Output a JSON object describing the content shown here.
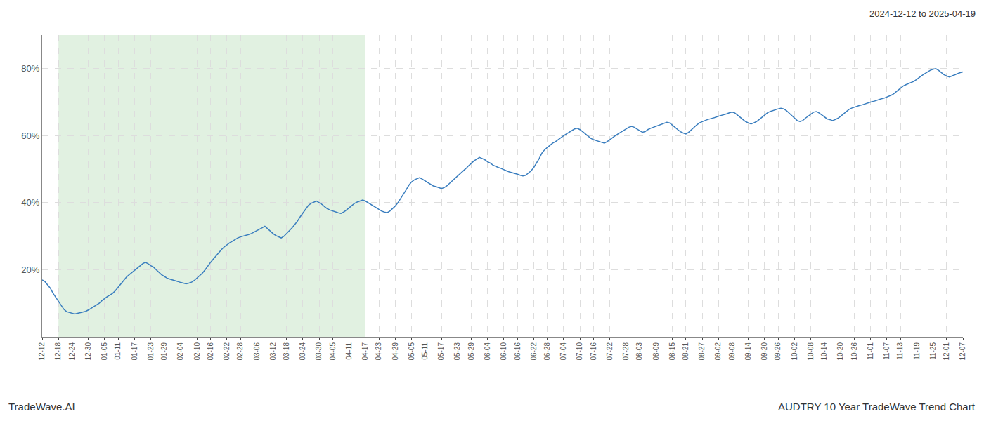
{
  "chart_data": {
    "type": "line",
    "title": "AUDTRY 10 Year TradeWave Trend Chart",
    "subtitle": "2024-12-12 to 2025-04-19",
    "annotations": [
      "TradeWave.AI"
    ],
    "color": "#3a7ebf",
    "grid": true,
    "ylim": [
      0.0,
      0.9
    ],
    "yticks": [
      {
        "value": 0.2,
        "label": "20%"
      },
      {
        "value": 0.4,
        "label": "40%"
      },
      {
        "value": 0.6,
        "label": "60%"
      },
      {
        "value": 0.8,
        "label": "80%"
      }
    ],
    "shaded_region": {
      "start": "12-18",
      "end": "04-17",
      "color": "#c8e6c9"
    },
    "categories": [
      "12-12",
      null,
      null,
      null,
      null,
      null,
      "12-18",
      null,
      null,
      null,
      null,
      "12-24",
      null,
      null,
      null,
      null,
      null,
      "12-30",
      null,
      null,
      null,
      null,
      null,
      "01-05",
      null,
      null,
      null,
      null,
      "01-11",
      null,
      null,
      null,
      null,
      null,
      "01-17",
      null,
      null,
      null,
      null,
      null,
      "01-23",
      null,
      null,
      null,
      null,
      "01-29",
      null,
      null,
      null,
      null,
      null,
      "02-04",
      null,
      null,
      null,
      null,
      null,
      "02-10",
      null,
      null,
      null,
      null,
      "02-16",
      null,
      null,
      null,
      null,
      null,
      "02-22",
      null,
      null,
      null,
      null,
      "02-28",
      null,
      null,
      null,
      null,
      null,
      "03-06",
      null,
      null,
      null,
      null,
      null,
      "03-12",
      null,
      null,
      null,
      null,
      "03-18",
      null,
      null,
      null,
      null,
      null,
      "03-24",
      null,
      null,
      null,
      null,
      null,
      "03-30",
      null,
      null,
      null,
      null,
      "04-05",
      null,
      null,
      null,
      null,
      null,
      "04-11",
      null,
      null,
      null,
      null,
      null,
      "04-17",
      null,
      null,
      null,
      null,
      "04-23",
      null,
      null,
      null,
      null,
      null,
      "04-29",
      null,
      null,
      null,
      null,
      null,
      "05-05",
      null,
      null,
      null,
      null,
      "05-11",
      null,
      null,
      null,
      null,
      null,
      "05-17",
      null,
      null,
      null,
      null,
      null,
      "05-23",
      null,
      null,
      null,
      null,
      "05-29",
      null,
      null,
      null,
      null,
      null,
      "06-04",
      null,
      null,
      null,
      null,
      null,
      "06-10",
      null,
      null,
      null,
      null,
      "06-16",
      null,
      null,
      null,
      null,
      null,
      "06-22",
      null,
      null,
      null,
      null,
      "06-28",
      null,
      null,
      null,
      null,
      null,
      "07-04",
      null,
      null,
      null,
      null,
      null,
      "07-10",
      null,
      null,
      null,
      null,
      "07-16",
      null,
      null,
      null,
      null,
      null,
      "07-22",
      null,
      null,
      null,
      null,
      null,
      "07-28",
      null,
      null,
      null,
      null,
      "08-03",
      null,
      null,
      null,
      null,
      null,
      "08-09",
      null,
      null,
      null,
      null,
      null,
      "08-15",
      null,
      null,
      null,
      null,
      "08-21",
      null,
      null,
      null,
      null,
      null,
      "08-27",
      null,
      null,
      null,
      null,
      null,
      "09-02",
      null,
      null,
      null,
      null,
      "09-08",
      null,
      null,
      null,
      null,
      null,
      "09-14",
      null,
      null,
      null,
      null,
      null,
      "09-20",
      null,
      null,
      null,
      null,
      "09-26",
      null,
      null,
      null,
      null,
      null,
      "10-02",
      null,
      null,
      null,
      null,
      null,
      "10-08",
      null,
      null,
      null,
      null,
      "10-14",
      null,
      null,
      null,
      null,
      null,
      "10-20",
      null,
      null,
      null,
      null,
      "10-26",
      null,
      null,
      null,
      null,
      null,
      "11-01",
      null,
      null,
      null,
      null,
      null,
      "11-07",
      null,
      null,
      null,
      null,
      "11-13",
      null,
      null,
      null,
      null,
      null,
      "11-19",
      null,
      null,
      null,
      null,
      null,
      "11-25",
      null,
      null,
      null,
      null,
      "12-01",
      null,
      null,
      null,
      null,
      null,
      "12-07"
    ],
    "values": [
      0.17,
      0.165,
      0.155,
      0.145,
      0.13,
      0.118,
      0.108,
      0.095,
      0.082,
      0.075,
      0.073,
      0.07,
      0.068,
      0.07,
      0.072,
      0.074,
      0.076,
      0.08,
      0.085,
      0.09,
      0.095,
      0.1,
      0.108,
      0.115,
      0.12,
      0.125,
      0.13,
      0.138,
      0.148,
      0.158,
      0.168,
      0.178,
      0.185,
      0.192,
      0.198,
      0.205,
      0.212,
      0.218,
      0.222,
      0.218,
      0.212,
      0.208,
      0.2,
      0.192,
      0.185,
      0.18,
      0.175,
      0.172,
      0.17,
      0.168,
      0.165,
      0.162,
      0.16,
      0.158,
      0.16,
      0.163,
      0.168,
      0.175,
      0.182,
      0.19,
      0.2,
      0.212,
      0.222,
      0.232,
      0.242,
      0.252,
      0.26,
      0.268,
      0.275,
      0.28,
      0.285,
      0.29,
      0.295,
      0.298,
      0.3,
      0.302,
      0.305,
      0.308,
      0.312,
      0.316,
      0.32,
      0.325,
      0.33,
      0.322,
      0.315,
      0.308,
      0.302,
      0.298,
      0.295,
      0.3,
      0.308,
      0.315,
      0.325,
      0.335,
      0.345,
      0.358,
      0.37,
      0.382,
      0.392,
      0.398,
      0.402,
      0.405,
      0.4,
      0.395,
      0.388,
      0.382,
      0.378,
      0.375,
      0.372,
      0.37,
      0.368,
      0.372,
      0.378,
      0.385,
      0.392,
      0.398,
      0.402,
      0.405,
      0.408,
      0.405,
      0.4,
      0.395,
      0.39,
      0.385,
      0.38,
      0.375,
      0.372,
      0.37,
      0.375,
      0.382,
      0.39,
      0.4,
      0.412,
      0.425,
      0.438,
      0.452,
      0.462,
      0.468,
      0.472,
      0.475,
      0.47,
      0.465,
      0.46,
      0.455,
      0.45,
      0.448,
      0.445,
      0.442,
      0.445,
      0.45,
      0.458,
      0.465,
      0.472,
      0.48,
      0.488,
      0.495,
      0.502,
      0.51,
      0.518,
      0.525,
      0.53,
      0.535,
      0.532,
      0.528,
      0.522,
      0.518,
      0.512,
      0.508,
      0.505,
      0.502,
      0.498,
      0.495,
      0.492,
      0.49,
      0.488,
      0.485,
      0.482,
      0.48,
      0.482,
      0.488,
      0.495,
      0.505,
      0.518,
      0.532,
      0.548,
      0.558,
      0.565,
      0.572,
      0.578,
      0.582,
      0.588,
      0.595,
      0.6,
      0.605,
      0.61,
      0.615,
      0.62,
      0.622,
      0.618,
      0.612,
      0.605,
      0.598,
      0.592,
      0.588,
      0.585,
      0.582,
      0.58,
      0.578,
      0.582,
      0.588,
      0.595,
      0.6,
      0.605,
      0.61,
      0.615,
      0.62,
      0.625,
      0.628,
      0.625,
      0.62,
      0.615,
      0.61,
      0.612,
      0.618,
      0.622,
      0.625,
      0.628,
      0.632,
      0.635,
      0.638,
      0.64,
      0.638,
      0.632,
      0.625,
      0.618,
      0.612,
      0.608,
      0.605,
      0.61,
      0.618,
      0.625,
      0.632,
      0.638,
      0.642,
      0.645,
      0.648,
      0.65,
      0.652,
      0.655,
      0.658,
      0.66,
      0.662,
      0.665,
      0.668,
      0.67,
      0.668,
      0.662,
      0.655,
      0.648,
      0.642,
      0.638,
      0.635,
      0.638,
      0.642,
      0.648,
      0.655,
      0.662,
      0.668,
      0.672,
      0.675,
      0.678,
      0.68,
      0.682,
      0.68,
      0.675,
      0.668,
      0.66,
      0.652,
      0.645,
      0.642,
      0.645,
      0.652,
      0.658,
      0.665,
      0.67,
      0.672,
      0.668,
      0.662,
      0.655,
      0.65,
      0.648,
      0.645,
      0.648,
      0.652,
      0.658,
      0.665,
      0.672,
      0.678,
      0.682,
      0.685,
      0.688,
      0.69,
      0.692,
      0.695,
      0.698,
      0.7,
      0.702,
      0.705,
      0.708,
      0.71,
      0.712,
      0.715,
      0.718,
      0.722,
      0.728,
      0.735,
      0.742,
      0.748,
      0.752,
      0.755,
      0.758,
      0.762,
      0.768,
      0.775,
      0.78,
      0.785,
      0.79,
      0.795,
      0.798,
      0.8,
      0.795,
      0.788,
      0.782,
      0.778,
      0.775,
      0.778,
      0.782,
      0.785,
      0.788,
      0.79
    ]
  }
}
